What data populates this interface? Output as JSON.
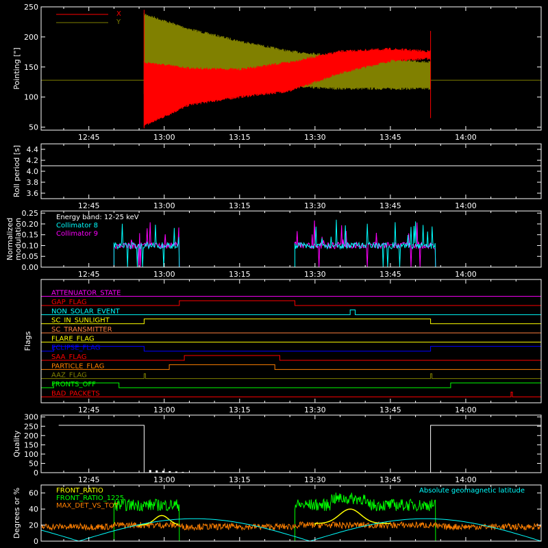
{
  "chart_data": [
    {
      "id": "pointing",
      "type": "line",
      "ylabel": "Pointing [\"]",
      "ylim": [
        45,
        250
      ],
      "yticks": [
        50,
        100,
        150,
        200,
        250
      ],
      "xticks": [
        "12:45",
        "13:00",
        "13:15",
        "13:30",
        "13:45",
        "14:00"
      ],
      "legend_position": "top-left",
      "series": [
        {
          "name": "X",
          "color": "#ff0000",
          "envelope": {
            "t": [
              "12:56",
              "13:05",
              "13:15",
              "13:25",
              "13:35",
              "13:45",
              "13:53"
            ],
            "lo": [
              50,
              85,
              98,
              108,
              138,
              158,
              162
            ],
            "hi": [
              160,
              150,
              148,
              160,
              178,
              182,
              178
            ]
          }
        },
        {
          "name": "Y",
          "color": "#808000",
          "baseline": 128,
          "envelope": {
            "t": [
              "12:56",
              "13:05",
              "13:15",
              "13:25",
              "13:35",
              "13:45",
              "13:53"
            ],
            "lo": [
              105,
              112,
              112,
              115,
              112,
              112,
              112
            ],
            "hi": [
              240,
              215,
              195,
              178,
              170,
              165,
              160
            ]
          }
        }
      ]
    },
    {
      "id": "roll",
      "type": "line",
      "ylabel": "Roll period [s]",
      "ylim": [
        3.5,
        4.5
      ],
      "yticks": [
        "4.4",
        "4.2",
        "4.0",
        "3.8",
        "3.6"
      ],
      "xticks": [
        "12:45",
        "13:00",
        "13:15",
        "13:30",
        "13:45",
        "14:00"
      ],
      "series": [
        {
          "name": "",
          "color": "#ffffff",
          "values": [
            4.1,
            4.1
          ]
        }
      ]
    },
    {
      "id": "modulation",
      "type": "line",
      "ylabel": "Normalized modulation",
      "ylim": [
        0,
        0.26
      ],
      "yticks": [
        "0.25",
        "0.20",
        "0.15",
        "0.10",
        "0.05",
        "0.00"
      ],
      "xticks": [
        "12:45",
        "13:00",
        "13:15",
        "13:30",
        "13:45",
        "14:00"
      ],
      "annotation": "Energy band: 12-25 keV",
      "series": [
        {
          "name": "Collimator 8",
          "color": "#00ffff",
          "active_windows": [
            [
              "12:50",
              "13:03"
            ],
            [
              "13:26",
              "13:54"
            ]
          ],
          "level": 0.1
        },
        {
          "name": "Collimator 9",
          "color": "#ff00ff",
          "active_windows": [
            [
              "12:50",
              "13:03"
            ],
            [
              "13:26",
              "13:54"
            ]
          ],
          "level": 0.1
        }
      ]
    },
    {
      "id": "flags",
      "type": "line",
      "ylabel": "Flags",
      "xticks": [
        "12:45",
        "13:00",
        "13:15",
        "13:30",
        "13:45",
        "14:00"
      ],
      "flags": [
        {
          "name": "ATTENUATOR_STATE",
          "color": "#ff00ff",
          "high": []
        },
        {
          "name": "GAP_FLAG",
          "color": "#ff0000",
          "high": [
            [
              "13:03",
              "13:26"
            ]
          ]
        },
        {
          "name": "NON_SOLAR_EVENT",
          "color": "#00ffff",
          "high": [
            [
              "13:37",
              "13:38"
            ]
          ]
        },
        {
          "name": "SC_IN_SUNLIGHT",
          "color": "#ffff00",
          "high": [
            [
              "12:56",
              "13:53"
            ]
          ]
        },
        {
          "name": "SC_TRANSMITTER",
          "color": "#ff8040",
          "high": []
        },
        {
          "name": "FLARE_FLAG",
          "color": "#ffff00",
          "high": []
        },
        {
          "name": "ECLIPSE_FLAG",
          "color": "#0000ff",
          "high": [
            [
              "12:38",
              "12:56"
            ],
            [
              "13:53",
              "14:15"
            ]
          ]
        },
        {
          "name": "SAA_FLAG",
          "color": "#ff0000",
          "high": [
            [
              "13:04",
              "13:23"
            ]
          ]
        },
        {
          "name": "PARTICLE_FLAG",
          "color": "#ff8000",
          "high": [
            [
              "13:01",
              "13:22"
            ]
          ]
        },
        {
          "name": "AAZ_FLAG",
          "color": "#808000",
          "high": [
            [
              "12:56",
              "12:56"
            ],
            [
              "13:53",
              "13:53"
            ]
          ]
        },
        {
          "name": "FRONTS_OFF",
          "color": "#00ff00",
          "high": [
            [
              "12:38",
              "12:51"
            ],
            [
              "13:57",
              "14:15"
            ]
          ]
        },
        {
          "name": "BAD_PACKETS",
          "color": "#ff0000",
          "high": [
            [
              "14:09",
              "14:09"
            ]
          ]
        }
      ]
    },
    {
      "id": "quality",
      "type": "line",
      "ylabel": "Quality",
      "ylim": [
        0,
        310
      ],
      "yticks": [
        300,
        250,
        200,
        150,
        100,
        50,
        0
      ],
      "xticks": [
        "12:45",
        "13:00",
        "13:15",
        "13:30",
        "13:45",
        "14:00"
      ],
      "series": [
        {
          "name": "",
          "color": "#ffffff",
          "segments": [
            [
              "12:39",
              "12:56",
              255
            ],
            [
              "12:56",
              "13:53",
              0
            ],
            [
              "13:53",
              "14:15",
              255
            ]
          ]
        }
      ]
    },
    {
      "id": "latitude",
      "type": "line",
      "ylabel": "Degrees or %",
      "ylim": [
        0,
        70
      ],
      "yticks": [
        60,
        40,
        20,
        0
      ],
      "xticks": [
        "12:45",
        "13:00",
        "13:15",
        "13:30",
        "13:45",
        "14:00"
      ],
      "legend_position": "top",
      "series": [
        {
          "name": "FRONT_RATIO",
          "color": "#ffff00"
        },
        {
          "name": "FRONT_RATIO_1225",
          "color": "#00ff00"
        },
        {
          "name": "MAX_DET_VS_TOT",
          "color": "#ff8000"
        },
        {
          "name": "Absolute geomagnetic latitude",
          "color": "#00ffff"
        }
      ]
    }
  ],
  "colors": {
    "axis": "#ffffff",
    "background": "#000000"
  }
}
